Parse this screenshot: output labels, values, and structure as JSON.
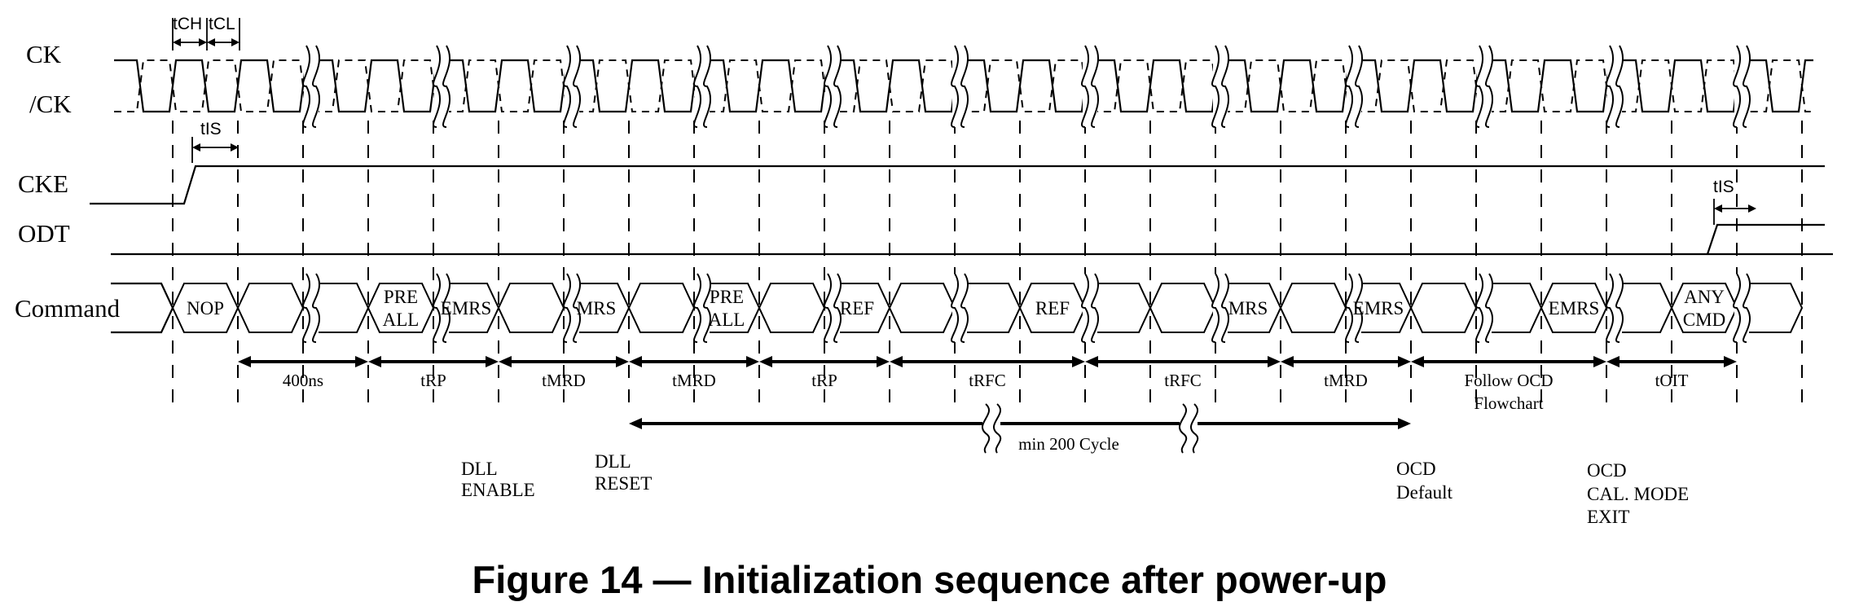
{
  "signals": {
    "ck": "CK",
    "ck_n": "/CK",
    "cke": "CKE",
    "odt": "ODT",
    "command": "Command"
  },
  "clock_timing": {
    "tch": "tCH",
    "tcl": "tCL"
  },
  "tis_labels": [
    "tIS",
    "tIS"
  ],
  "commands": [
    {
      "id": "nop",
      "lines": [
        "NOP"
      ]
    },
    {
      "id": "preall1",
      "lines": [
        "PRE",
        "ALL"
      ]
    },
    {
      "id": "emrs1",
      "lines": [
        "EMRS"
      ]
    },
    {
      "id": "mrs1",
      "lines": [
        "MRS"
      ]
    },
    {
      "id": "preall2",
      "lines": [
        "PRE",
        "ALL"
      ]
    },
    {
      "id": "ref1",
      "lines": [
        "REF"
      ]
    },
    {
      "id": "ref2",
      "lines": [
        "REF"
      ]
    },
    {
      "id": "mrs2",
      "lines": [
        "MRS"
      ]
    },
    {
      "id": "emrs2",
      "lines": [
        "EMRS"
      ]
    },
    {
      "id": "emrs3",
      "lines": [
        "EMRS"
      ]
    },
    {
      "id": "anycmd",
      "lines": [
        "ANY",
        "CMD"
      ]
    }
  ],
  "intervals": [
    {
      "lines": [
        "400ns"
      ]
    },
    {
      "lines": [
        "tRP"
      ]
    },
    {
      "lines": [
        "tMRD"
      ]
    },
    {
      "lines": [
        "tMRD"
      ]
    },
    {
      "lines": [
        "tRP"
      ]
    },
    {
      "lines": [
        "tRFC"
      ]
    },
    {
      "lines": [
        "tRFC"
      ]
    },
    {
      "lines": [
        "tMRD"
      ]
    },
    {
      "lines": [
        "Follow OCD",
        "Flowchart"
      ]
    },
    {
      "lines": [
        "tOIT"
      ]
    }
  ],
  "long_interval": "min 200 Cycle",
  "annotations": [
    {
      "id": "dll-enable",
      "lines": [
        "DLL",
        "ENABLE"
      ]
    },
    {
      "id": "dll-reset",
      "lines": [
        "DLL",
        "RESET"
      ]
    },
    {
      "id": "ocd-default",
      "lines": [
        "OCD",
        "Default"
      ]
    },
    {
      "id": "ocd-cal-mode-exit",
      "lines": [
        "OCD",
        "CAL. MODE",
        "EXIT"
      ]
    }
  ],
  "figure_title": "Figure 14 — Initialization sequence after power-up"
}
